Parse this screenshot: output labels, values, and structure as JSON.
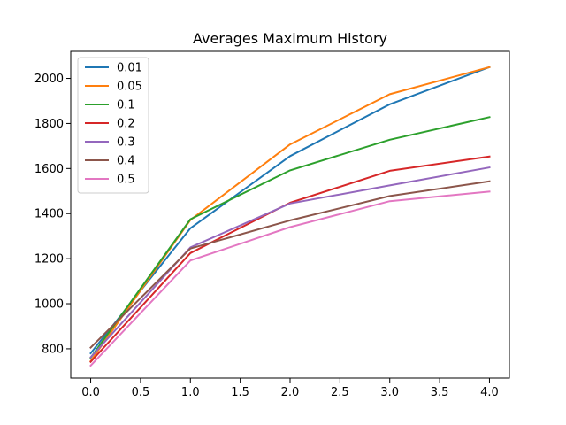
{
  "chart_data": {
    "type": "line",
    "title": "Averages Maximum History",
    "xlabel": "",
    "ylabel": "",
    "x": [
      0,
      1,
      2,
      3,
      4
    ],
    "xlim": [
      -0.2,
      4.2
    ],
    "ylim": [
      670,
      2120
    ],
    "xticks": [
      0.0,
      0.5,
      1.0,
      1.5,
      2.0,
      2.5,
      3.0,
      3.5,
      4.0
    ],
    "xtick_labels": [
      "0.0",
      "0.5",
      "1.0",
      "1.5",
      "2.0",
      "2.5",
      "3.0",
      "3.5",
      "4.0"
    ],
    "yticks": [
      800,
      1000,
      1200,
      1400,
      1600,
      1800,
      2000
    ],
    "ytick_labels": [
      "800",
      "1000",
      "1200",
      "1400",
      "1600",
      "1800",
      "2000"
    ],
    "grid": false,
    "legend": "top-left",
    "series": [
      {
        "name": "0.01",
        "color": "#1f77b4",
        "values": [
          780,
          1335,
          1655,
          1885,
          2050
        ]
      },
      {
        "name": "0.05",
        "color": "#ff7f0e",
        "values": [
          745,
          1372,
          1707,
          1930,
          2050
        ]
      },
      {
        "name": "0.1",
        "color": "#2ca02c",
        "values": [
          760,
          1375,
          1592,
          1728,
          1828
        ]
      },
      {
        "name": "0.2",
        "color": "#d62728",
        "values": [
          742,
          1225,
          1448,
          1590,
          1653
        ]
      },
      {
        "name": "0.3",
        "color": "#9467bd",
        "values": [
          762,
          1250,
          1445,
          1525,
          1605
        ]
      },
      {
        "name": "0.4",
        "color": "#8c564b",
        "values": [
          805,
          1245,
          1370,
          1478,
          1543
        ]
      },
      {
        "name": "0.5",
        "color": "#e377c2",
        "values": [
          725,
          1192,
          1340,
          1455,
          1498
        ]
      }
    ]
  }
}
